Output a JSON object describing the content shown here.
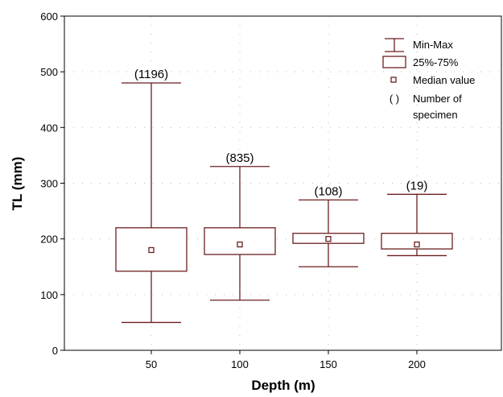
{
  "chart_data": {
    "type": "boxplot",
    "xlabel": "Depth (m)",
    "ylabel": "TL (mm)",
    "ylim": [
      0,
      600
    ],
    "yticks": [
      "0",
      "100",
      "200",
      "300",
      "400",
      "500",
      "600"
    ],
    "categories": [
      "50",
      "100",
      "150",
      "200"
    ],
    "boxes": [
      {
        "category": "50",
        "min": 50,
        "q1": 142,
        "median": 180,
        "q3": 220,
        "max": 480,
        "count_label": "(1196)"
      },
      {
        "category": "100",
        "min": 90,
        "q1": 172,
        "median": 190,
        "q3": 220,
        "max": 330,
        "count_label": "(835)"
      },
      {
        "category": "150",
        "min": 150,
        "q1": 192,
        "median": 200,
        "q3": 210,
        "max": 270,
        "count_label": "(108)"
      },
      {
        "category": "200",
        "min": 170,
        "q1": 182,
        "median": 190,
        "q3": 210,
        "max": 280,
        "count_label": "(19)"
      }
    ],
    "grid": "dotted",
    "legend": {
      "placement": "top-right",
      "items": [
        {
          "symbol": "whisker",
          "label": "Min-Max"
        },
        {
          "symbol": "box",
          "label": "25%-75%"
        },
        {
          "symbol": "square",
          "label": "Median value"
        },
        {
          "symbol": "parens",
          "glyph": "( )",
          "label": "Number of",
          "label2": "specimen"
        }
      ]
    },
    "colors": {
      "box": "#6b1f1f",
      "axis": "#000000",
      "grid": "#b8b8b8"
    }
  }
}
